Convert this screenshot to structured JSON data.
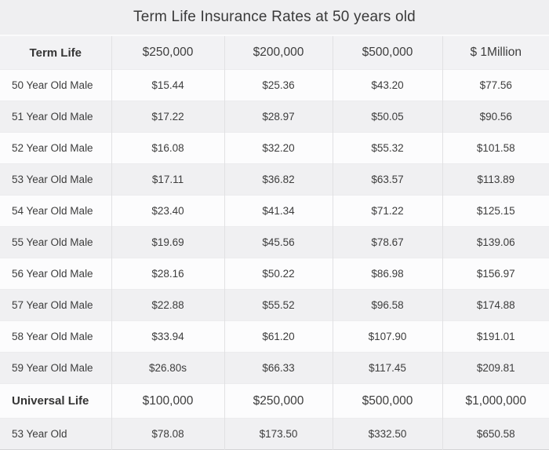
{
  "page": {
    "title": "Term Life Insurance Rates at 50 years old"
  },
  "colors": {
    "page_background": "#efeff1",
    "row_light": "#fcfcfd",
    "row_shaded": "#f0f0f2",
    "header_background": "#f2f2f4",
    "border_vertical": "#e1e1e3",
    "border_horizontal": "#ececee",
    "text": "#3d3d3d"
  },
  "table": {
    "header": {
      "label": "Term Life",
      "cols": [
        "$250,000",
        "$200,000",
        "$500,000",
        "$ 1Million"
      ]
    },
    "rows": [
      {
        "label": "50 Year Old Male",
        "values": [
          "$15.44",
          "$25.36",
          "$43.20",
          "$77.56"
        ]
      },
      {
        "label": "51 Year Old Male",
        "values": [
          "$17.22",
          "$28.97",
          "$50.05",
          "$90.56"
        ]
      },
      {
        "label": "52 Year Old Male",
        "values": [
          "$16.08",
          "$32.20",
          "$55.32",
          "$101.58"
        ]
      },
      {
        "label": "53 Year Old Male",
        "values": [
          "$17.11",
          "$36.82",
          "$63.57",
          "$113.89"
        ]
      },
      {
        "label": "54 Year Old Male",
        "values": [
          "$23.40",
          "$41.34",
          "$71.22",
          "$125.15"
        ]
      },
      {
        "label": "55 Year Old Male",
        "values": [
          "$19.69",
          "$45.56",
          "$78.67",
          "$139.06"
        ]
      },
      {
        "label": "56 Year Old Male",
        "values": [
          "$28.16",
          "$50.22",
          "$86.98",
          "$156.97"
        ]
      },
      {
        "label": "57 Year Old Male",
        "values": [
          "$22.88",
          "$55.52",
          "$96.58",
          "$174.88"
        ]
      },
      {
        "label": "58 Year Old Male",
        "values": [
          "$33.94",
          "$61.20",
          "$107.90",
          "$191.01"
        ]
      },
      {
        "label": "59 Year Old Male",
        "values": [
          "$26.80s",
          "$66.33",
          "$117.45",
          "$209.81"
        ]
      }
    ],
    "universal_header": {
      "label": "Universal Life",
      "cols": [
        "$100,000",
        "$250,000",
        "$500,000",
        "$1,000,000"
      ]
    },
    "universal_rows": [
      {
        "label": "53 Year Old",
        "values": [
          "$78.08",
          "$173.50",
          "$332.50",
          "$650.58"
        ]
      }
    ]
  },
  "chart_data": {
    "type": "table",
    "title": "Term Life Insurance Rates at 50 years old",
    "sections": [
      {
        "section_header": [
          "Term Life",
          "$250,000",
          "$200,000",
          "$500,000",
          "$ 1Million"
        ],
        "rows": [
          [
            "50 Year Old Male",
            "$15.44",
            "$25.36",
            "$43.20",
            "$77.56"
          ],
          [
            "51 Year Old Male",
            "$17.22",
            "$28.97",
            "$50.05",
            "$90.56"
          ],
          [
            "52 Year Old Male",
            "$16.08",
            "$32.20",
            "$55.32",
            "$101.58"
          ],
          [
            "53 Year Old Male",
            "$17.11",
            "$36.82",
            "$63.57",
            "$113.89"
          ],
          [
            "54 Year Old Male",
            "$23.40",
            "$41.34",
            "$71.22",
            "$125.15"
          ],
          [
            "55 Year Old Male",
            "$19.69",
            "$45.56",
            "$78.67",
            "$139.06"
          ],
          [
            "56 Year Old Male",
            "$28.16",
            "$50.22",
            "$86.98",
            "$156.97"
          ],
          [
            "57 Year Old Male",
            "$22.88",
            "$55.52",
            "$96.58",
            "$174.88"
          ],
          [
            "58 Year Old Male",
            "$33.94",
            "$61.20",
            "$107.90",
            "$191.01"
          ],
          [
            "59 Year Old Male",
            "$26.80s",
            "$66.33",
            "$117.45",
            "$209.81"
          ]
        ]
      },
      {
        "section_header": [
          "Universal Life",
          "$100,000",
          "$250,000",
          "$500,000",
          "$1,000,000"
        ],
        "rows": [
          [
            "53 Year Old",
            "$78.08",
            "$173.50",
            "$332.50",
            "$650.58"
          ]
        ]
      }
    ]
  }
}
